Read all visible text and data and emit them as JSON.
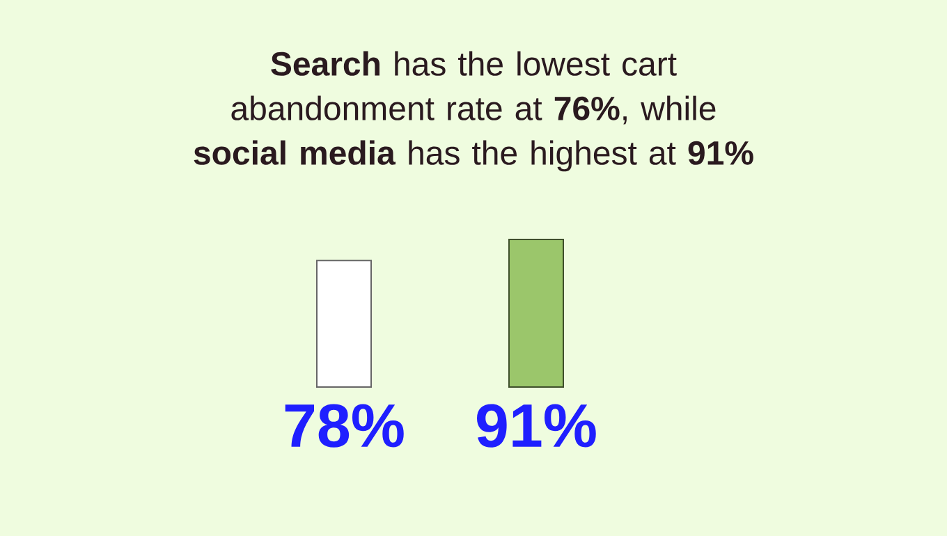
{
  "chart_data": {
    "type": "bar",
    "title": "**Search** has the lowest cart abandonment rate at **76%**, while **social media** has the highest at **91%**",
    "categories": [
      null,
      null
    ],
    "values": [
      78,
      91
    ],
    "colors": [
      "#ffffff",
      "#9bc66b"
    ],
    "value_labels": [
      "78%",
      "91%"
    ]
  }
}
